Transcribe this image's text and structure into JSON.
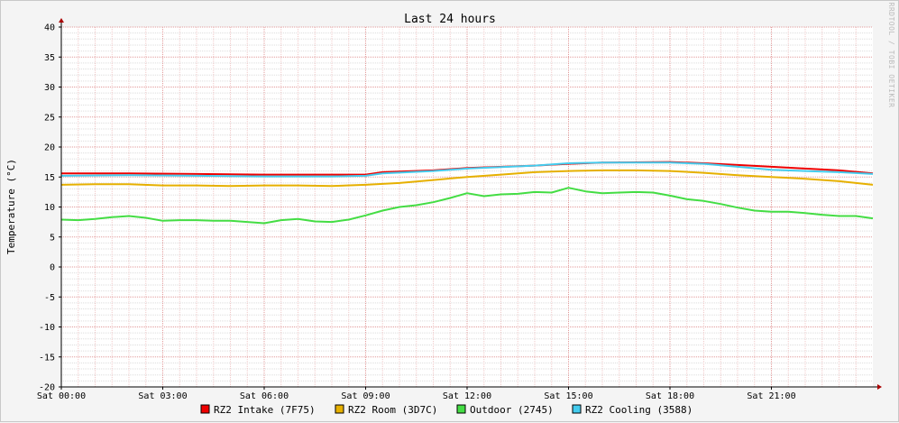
{
  "chart_data": {
    "type": "line",
    "title": "Last 24 hours",
    "ylabel": "Temperature (°C)",
    "watermark": "RRDTOOL / TOBI OETIKER",
    "ylim": [
      -20,
      40
    ],
    "yticks": [
      40,
      35,
      30,
      25,
      20,
      15,
      10,
      5,
      0,
      -5,
      -10,
      -15,
      -20
    ],
    "xlim": [
      0,
      24
    ],
    "xticks": [
      {
        "x": 0,
        "label": "Sat 00:00"
      },
      {
        "x": 3,
        "label": "Sat 03:00"
      },
      {
        "x": 6,
        "label": "Sat 06:00"
      },
      {
        "x": 9,
        "label": "Sat 09:00"
      },
      {
        "x": 12,
        "label": "Sat 12:00"
      },
      {
        "x": 15,
        "label": "Sat 15:00"
      },
      {
        "x": 18,
        "label": "Sat 18:00"
      },
      {
        "x": 21,
        "label": "Sat 21:00"
      }
    ],
    "grid": true,
    "legend_position": "bottom",
    "series": [
      {
        "name": "RZ2 Intake (7F75)",
        "color": "#ee0000",
        "x": [
          0,
          2,
          4,
          6,
          8,
          9,
          9.5,
          11,
          12,
          14,
          15,
          16,
          18,
          19,
          20,
          21,
          22,
          23,
          24
        ],
        "values": [
          15.6,
          15.6,
          15.5,
          15.4,
          15.4,
          15.4,
          15.8,
          16.1,
          16.5,
          16.9,
          17.2,
          17.4,
          17.5,
          17.3,
          17.0,
          16.7,
          16.4,
          16.1,
          15.6
        ]
      },
      {
        "name": "RZ2 Room (3D7C)",
        "color": "#e6b000",
        "x": [
          0,
          1,
          2,
          3,
          4,
          5,
          6,
          7,
          8,
          9,
          10,
          11,
          12,
          13,
          14,
          15,
          16,
          17,
          18,
          19,
          20,
          21,
          22,
          23,
          24
        ],
        "values": [
          13.7,
          13.8,
          13.8,
          13.6,
          13.6,
          13.5,
          13.6,
          13.6,
          13.5,
          13.7,
          14.0,
          14.5,
          15.0,
          15.4,
          15.8,
          16.0,
          16.1,
          16.1,
          16.0,
          15.7,
          15.3,
          15.0,
          14.7,
          14.3,
          13.7
        ]
      },
      {
        "name": "Outdoor (2745)",
        "color": "#44dd44",
        "x": [
          0,
          0.5,
          1,
          1.5,
          2,
          2.5,
          3,
          3.5,
          4,
          4.5,
          5,
          5.5,
          6,
          6.5,
          7,
          7.5,
          8,
          8.5,
          9,
          9.5,
          10,
          10.5,
          11,
          11.5,
          12,
          12.5,
          13,
          13.5,
          14,
          14.5,
          15,
          15.5,
          16,
          16.5,
          17,
          17.5,
          18,
          18.5,
          19,
          19.5,
          20,
          20.5,
          21,
          21.5,
          22,
          22.5,
          23,
          23.5,
          24
        ],
        "values": [
          7.9,
          7.8,
          8.0,
          8.3,
          8.5,
          8.2,
          7.7,
          7.8,
          7.8,
          7.7,
          7.7,
          7.5,
          7.3,
          7.8,
          8.0,
          7.6,
          7.5,
          7.9,
          8.6,
          9.4,
          10.0,
          10.3,
          10.8,
          11.5,
          12.3,
          11.8,
          12.1,
          12.2,
          12.5,
          12.4,
          13.2,
          12.6,
          12.3,
          12.4,
          12.5,
          12.4,
          11.9,
          11.3,
          11.0,
          10.5,
          9.9,
          9.4,
          9.2,
          9.2,
          9.0,
          8.7,
          8.5,
          8.5,
          8.1
        ]
      },
      {
        "name": "RZ2 Cooling (3588)",
        "color": "#44ccee",
        "x": [
          0,
          2,
          4,
          6,
          8,
          9,
          9.5,
          11,
          12,
          14,
          15,
          16,
          18,
          19,
          20,
          21,
          22,
          23,
          24
        ],
        "values": [
          15.2,
          15.3,
          15.2,
          15.1,
          15.1,
          15.2,
          15.6,
          16.0,
          16.4,
          16.9,
          17.3,
          17.4,
          17.4,
          17.2,
          16.7,
          16.2,
          16.0,
          15.8,
          15.5
        ]
      }
    ]
  }
}
